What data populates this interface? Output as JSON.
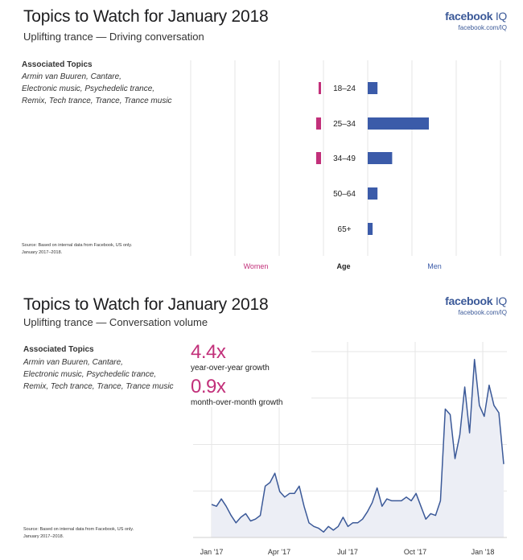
{
  "panel1": {
    "title": "Topics to Watch for January 2018",
    "subtitle": "Uplifting trance — Driving conversation",
    "brand": {
      "logo_main": "facebook",
      "logo_iq": "IQ",
      "url": "facebook.com/IQ"
    },
    "associated_title": "Associated Topics",
    "associated_body": "Armin van Buuren, Cantare,\nElectronic music, Psychedelic trance,\nRemix, Tech trance, Trance, Trance music",
    "source": "Source: Based on internal data from Facebook, US only.\nJanuary 2017–2018.",
    "legend": {
      "women": "Women",
      "age": "Age",
      "men": "Men"
    }
  },
  "panel2": {
    "title": "Topics to Watch for January 2018",
    "subtitle": "Uplifting trance — Conversation volume",
    "brand": {
      "logo_main": "facebook",
      "logo_iq": "IQ",
      "url": "facebook.com/IQ"
    },
    "associated_title": "Associated Topics",
    "associated_body": "Armin van Buuren, Cantare,\nElectronic music, Psychedelic trance,\nRemix, Tech trance, Trance, Trance music",
    "source": "Source: Based on internal data from Facebook, US only.\nJanuary 2017–2018.",
    "stats": [
      {
        "value": "4.4x",
        "label": "year-over-year growth"
      },
      {
        "value": "0.9x",
        "label": "month-over-month growth"
      }
    ]
  },
  "colors": {
    "women": "#c2307a",
    "men": "#3b5ba9",
    "line": "#3b5998",
    "area": "#eceef5",
    "grid": "#e6e6e6"
  },
  "chart_data": [
    {
      "type": "bar",
      "orientation": "horizontal",
      "categories": [
        "18–24",
        "25–34",
        "34–49",
        "50–64",
        "65+"
      ],
      "series": [
        {
          "name": "Women",
          "values": [
            1,
            2,
            2,
            0,
            0
          ]
        },
        {
          "name": "Men",
          "values": [
            4,
            25,
            10,
            4,
            2
          ]
        }
      ],
      "xlabel": "Age",
      "grid": true
    },
    {
      "type": "area",
      "x_tick_labels": [
        "Jan '17",
        "Apr '17",
        "Jul '17",
        "Oct '17",
        "Jan '18"
      ],
      "ylim": [
        0,
        100
      ],
      "grid": true,
      "values": [
        18,
        17,
        21,
        17,
        12,
        8,
        11,
        13,
        9,
        10,
        12,
        28,
        30,
        35,
        25,
        22,
        24,
        24,
        28,
        17,
        8,
        6,
        5,
        3,
        6,
        4,
        6,
        11,
        6,
        8,
        8,
        10,
        14,
        19,
        27,
        17,
        21,
        20,
        20,
        20,
        22,
        20,
        24,
        17,
        10,
        13,
        12,
        20,
        70,
        67,
        43,
        56,
        82,
        57,
        97,
        72,
        66,
        83,
        72,
        68,
        40
      ]
    }
  ]
}
